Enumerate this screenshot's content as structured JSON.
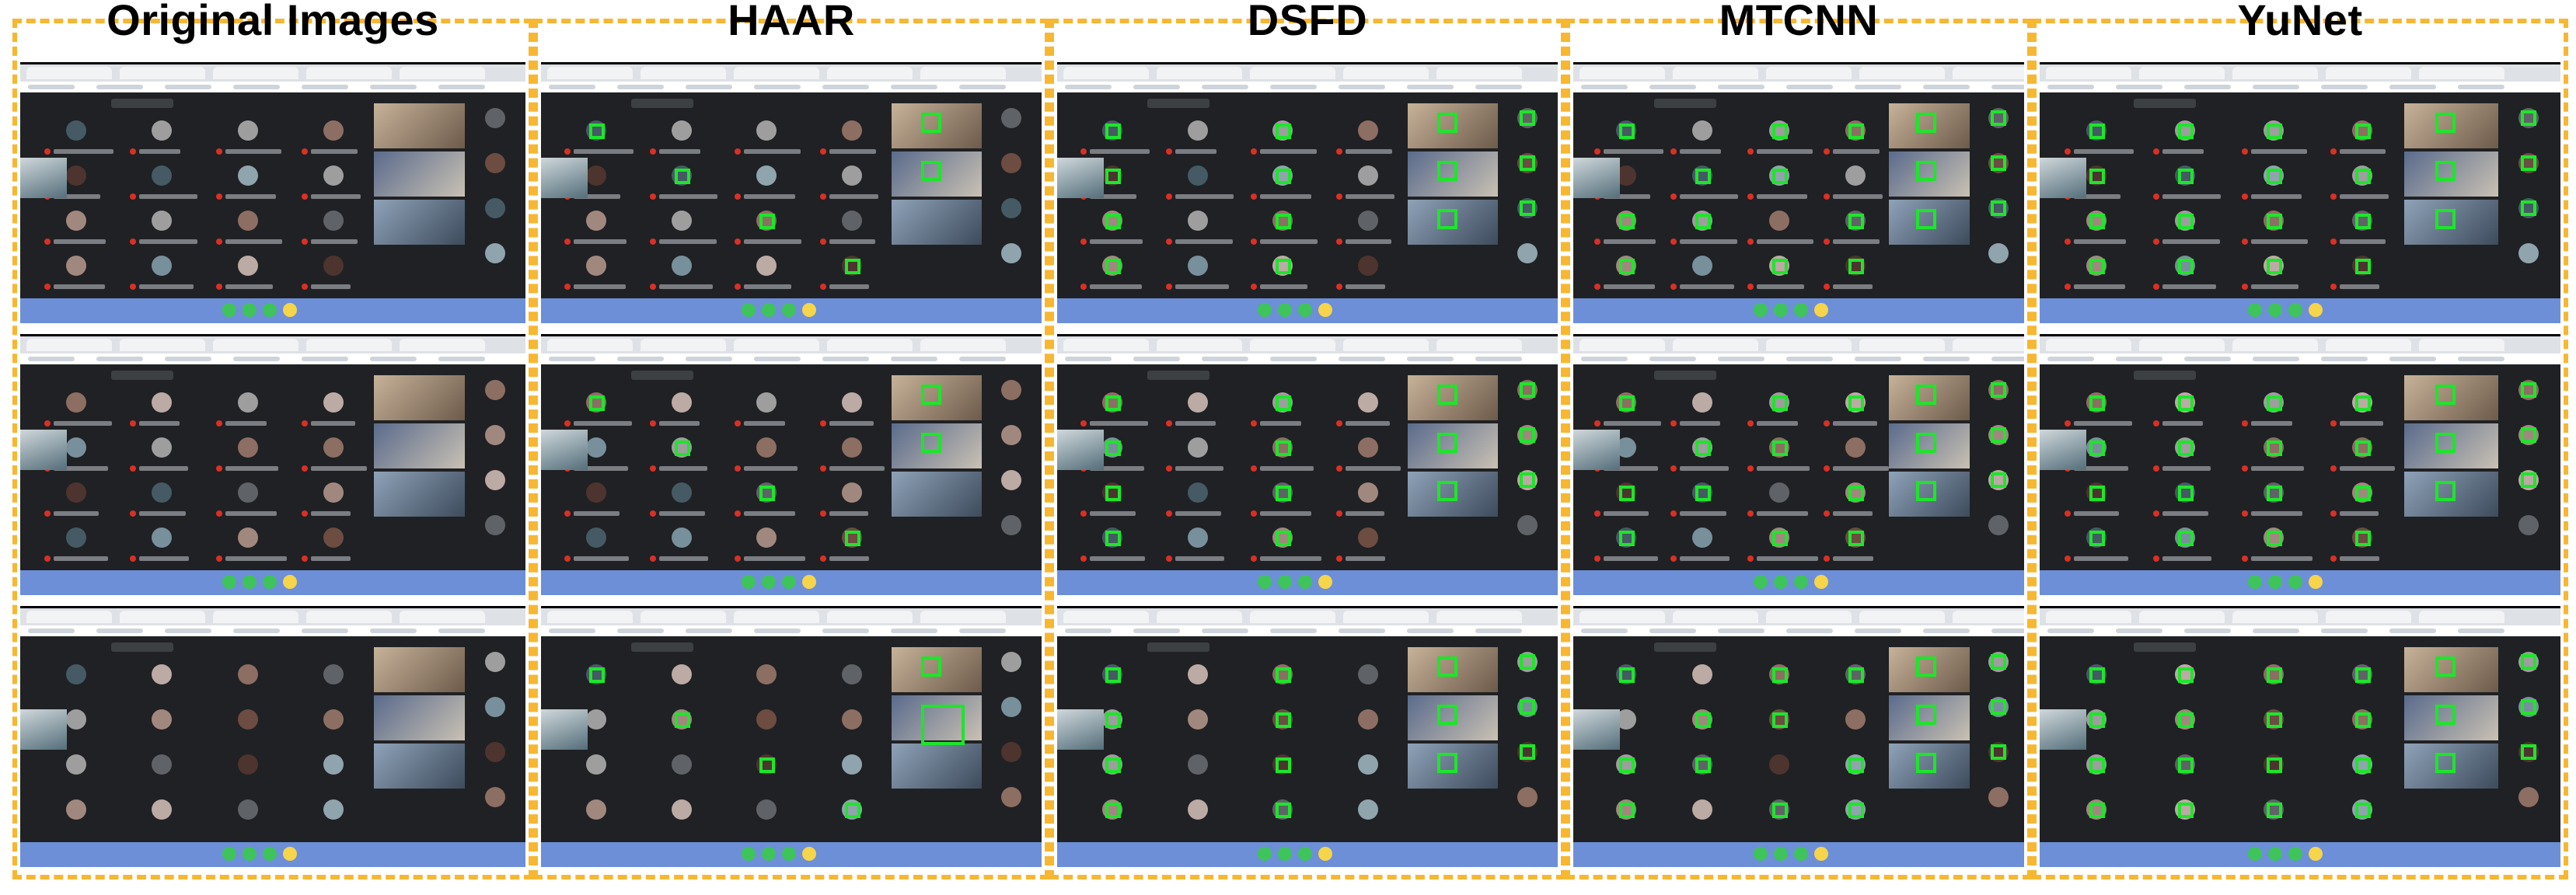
{
  "columns": [
    {
      "title": "Original Images",
      "detector": "original"
    },
    {
      "title": "HAAR",
      "detector": "haar"
    },
    {
      "title": "DSFD",
      "detector": "dsfd"
    },
    {
      "title": "MTCNN",
      "detector": "mtcnn"
    },
    {
      "title": "YuNet",
      "detector": "yunet"
    }
  ],
  "colors": {
    "dashed_border": "#f7b731",
    "detection_box": "#1ee52b",
    "meeting_background": "#202124",
    "control_bar": "#6c8fd8"
  },
  "panels_per_column": 3
}
